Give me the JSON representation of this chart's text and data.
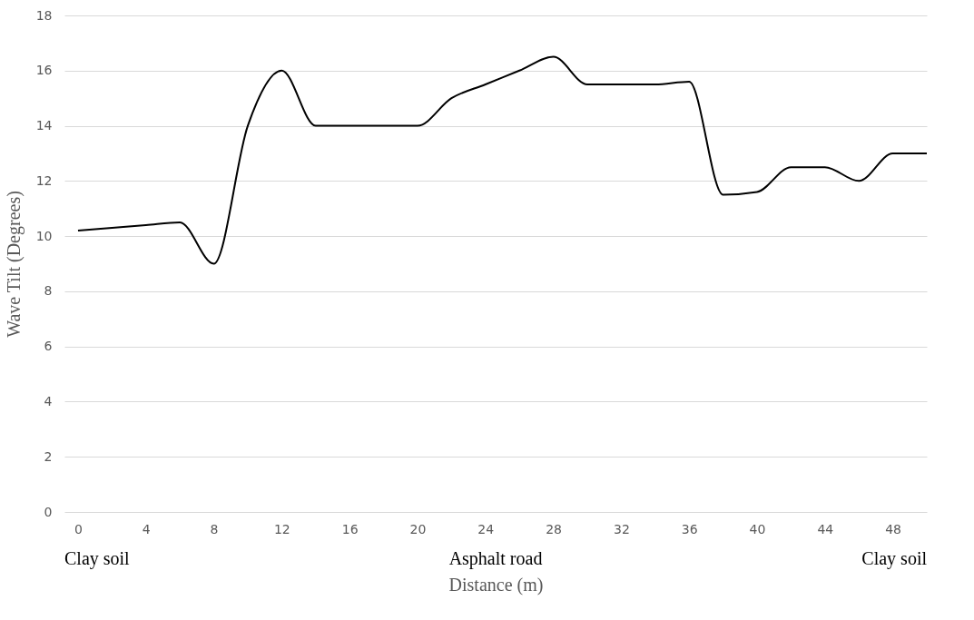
{
  "chart_data": {
    "type": "line",
    "xlabel": "Distance (m)",
    "ylabel": "Wave Tilt (Degrees)",
    "x": [
      0,
      2,
      4,
      6,
      8,
      10,
      12,
      14,
      16,
      18,
      20,
      22,
      24,
      26,
      28,
      30,
      32,
      34,
      36,
      38,
      40,
      42,
      44,
      46,
      48,
      50
    ],
    "series": [
      {
        "color": "#000000",
        "values": [
          10.2,
          10.3,
          10.4,
          10.5,
          9.0,
          14.0,
          16.0,
          14.0,
          14.0,
          14.0,
          14.0,
          15.0,
          15.5,
          16.0,
          16.5,
          15.5,
          15.5,
          15.5,
          15.6,
          11.5,
          11.6,
          12.5,
          12.5,
          12.0,
          13.0,
          13.0
        ]
      }
    ],
    "xlim": [
      -0.8,
      50
    ],
    "xticks": [
      0,
      4,
      8,
      12,
      16,
      20,
      24,
      28,
      32,
      36,
      40,
      44,
      48
    ],
    "ylim": [
      0,
      18
    ],
    "yticks": [
      0,
      2,
      4,
      6,
      8,
      10,
      12,
      14,
      16,
      18
    ],
    "grid": "y",
    "legend": false,
    "marker": "none",
    "line_style": "solid",
    "annotations": [
      "Clay soil",
      "Asphalt road",
      "Clay soil"
    ]
  }
}
